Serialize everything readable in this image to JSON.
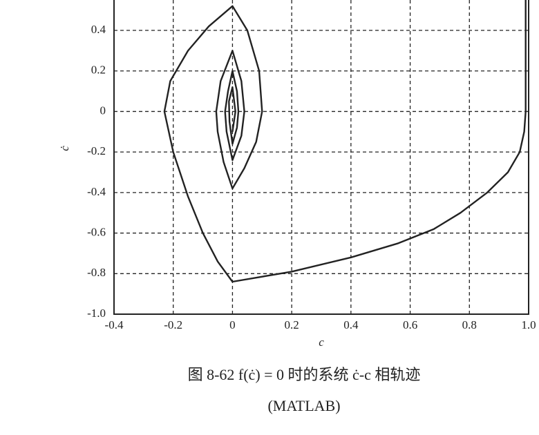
{
  "chart_data": {
    "type": "line",
    "x_label": "c",
    "y_label": "ċ",
    "caption": "图 8-62    f(ċ) = 0 时的系统 ċ-c 相轨迹",
    "caption_note": "(MATLAB)",
    "xlim": [
      -0.4,
      1.0
    ],
    "ylim": [
      -1.0,
      0.55
    ],
    "xticks": [
      -0.4,
      -0.2,
      0,
      0.2,
      0.4,
      0.6,
      0.8,
      {
        "value": 1.0,
        "label": "1.0"
      }
    ],
    "yticks": [
      {
        "value": -1.0,
        "label": "-1.0"
      },
      -0.8,
      -0.6,
      -0.4,
      -0.2,
      0,
      0.2,
      0.4
    ],
    "grid": true,
    "series": [
      {
        "color": "#222222",
        "x": [
          0.99,
          0.99,
          0.99,
          0.985,
          0.97,
          0.93,
          0.86,
          0.77,
          0.68,
          0.56,
          0.4,
          0.2,
          0,
          -0.05,
          -0.1,
          -0.15,
          -0.2,
          -0.23,
          -0.21,
          -0.15,
          -0.08,
          0,
          0.05,
          0.09,
          0.1,
          0.08,
          0.04,
          0,
          -0.03,
          -0.05,
          -0.055,
          -0.04,
          0,
          0.03,
          0.04,
          0.03,
          0,
          -0.02,
          -0.025,
          -0.015,
          0,
          0.015,
          0.02,
          0.015,
          0,
          -0.01,
          -0.012,
          0,
          0.01,
          0
        ],
        "values": [
          0.55,
          0.2,
          0,
          -0.1,
          -0.2,
          -0.3,
          -0.4,
          -0.5,
          -0.58,
          -0.65,
          -0.72,
          -0.79,
          -0.84,
          -0.74,
          -0.6,
          -0.42,
          -0.2,
          0,
          0.15,
          0.3,
          0.42,
          0.52,
          0.4,
          0.2,
          0,
          -0.15,
          -0.28,
          -0.38,
          -0.25,
          -0.1,
          0,
          0.15,
          0.3,
          0.15,
          0,
          -0.12,
          -0.24,
          -0.1,
          0,
          0.1,
          0.2,
          0.1,
          0,
          -0.08,
          -0.16,
          -0.05,
          0.05,
          0.12,
          0,
          -0.1
        ]
      }
    ]
  }
}
